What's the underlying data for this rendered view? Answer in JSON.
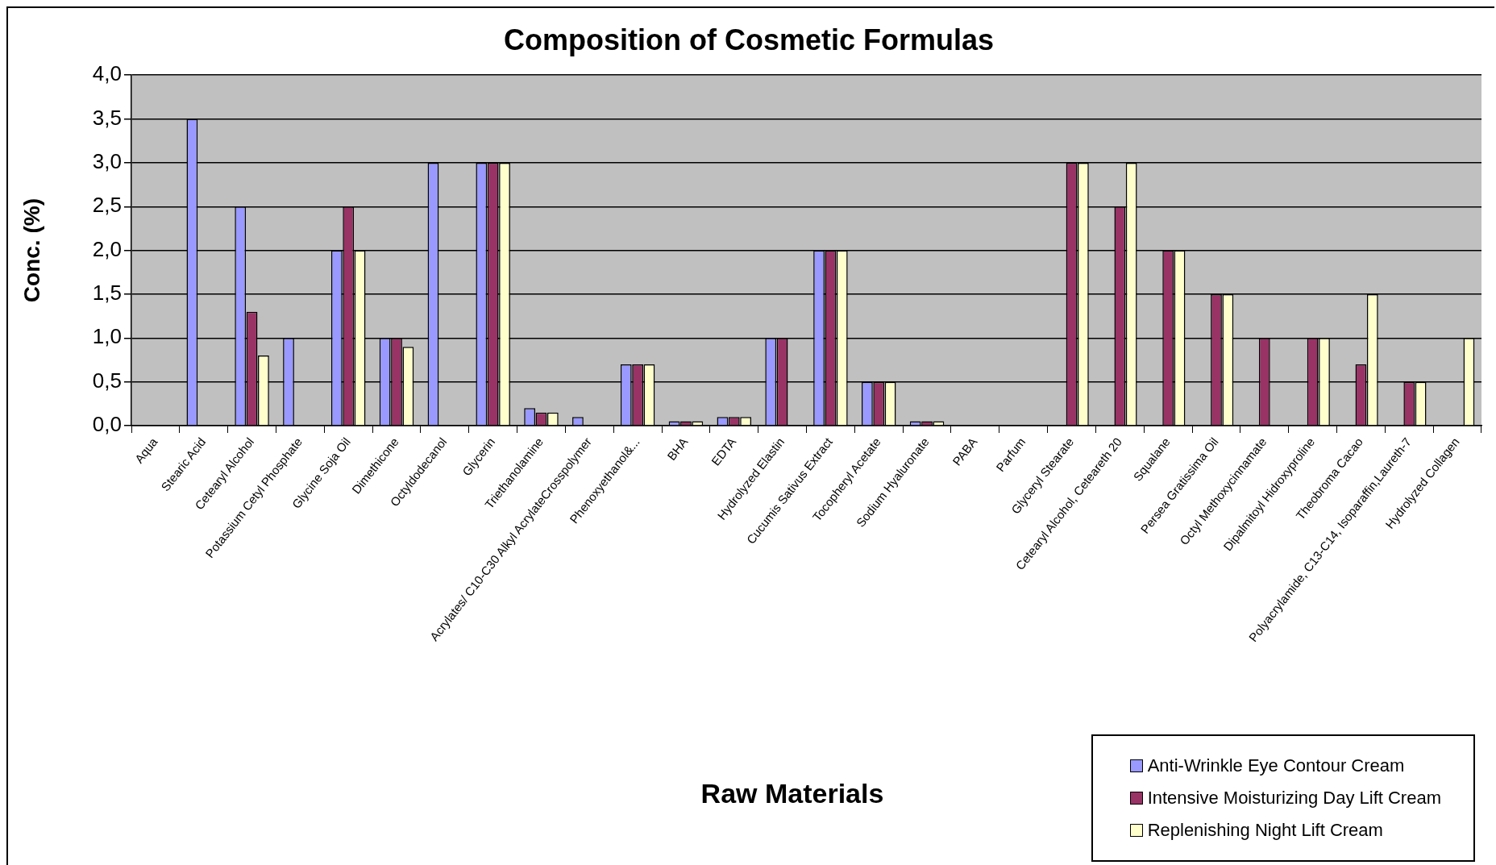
{
  "chart_data": {
    "type": "bar",
    "title": "Composition of Cosmetic Formulas",
    "xlabel": "Raw Materials",
    "ylabel": "Conc. (%)",
    "categories": [
      "Aqua",
      "Stearic Acid",
      "Cetearyl Alcohol",
      "Potassium Cetyl Phosphate",
      "Glycine Soja Oil",
      "Dimethicone",
      "Octyldodecanol",
      "Glycerin",
      "Triethanolamine",
      "Acrylates/ C10-C30 Alkyl AcrylateCrosspolymer",
      "Phenoxyethanol&...",
      "BHA",
      "EDTA",
      "Hydrolyzed Elastin",
      "Cucumis Sativus Extract",
      "Tocopheryl Acetate",
      "Sodium Hyaluronate",
      "PABA",
      "Parfum",
      "Glyceryl Stearate",
      "Cetearyl Alcohol, Ceteareth 20",
      "Squalane",
      "Persea Gratissima Oil",
      "Octyl Methoxycinnamate",
      "Dipalmitoyl Hidroxyproline",
      "Theobroma Cacao",
      "Polyacrylamide, C13-C14, Isoparaffin,Laureth-7",
      "Hydrolyzed Collagen"
    ],
    "series": [
      {
        "name": "Anti-Wrinkle Eye Contour Cream",
        "color": "#9999ff",
        "values": [
          null,
          3.5,
          2.5,
          1.0,
          2.0,
          1.0,
          3.0,
          3.0,
          0.2,
          0.1,
          0.7,
          0.05,
          0.1,
          1.0,
          2.0,
          0.5,
          0.05,
          null,
          null,
          null,
          null,
          null,
          null,
          null,
          null,
          null,
          null,
          null
        ]
      },
      {
        "name": "Intensive Moisturizing Day Lift Cream",
        "color": "#993366",
        "values": [
          null,
          null,
          1.3,
          null,
          2.5,
          1.0,
          null,
          3.0,
          0.15,
          null,
          0.7,
          0.05,
          0.1,
          1.0,
          2.0,
          0.5,
          0.05,
          null,
          null,
          3.0,
          2.5,
          2.0,
          1.5,
          1.0,
          1.0,
          0.7,
          0.5,
          null
        ]
      },
      {
        "name": "Replenishing Night Lift Cream",
        "color": "#ffffcc",
        "values": [
          null,
          null,
          0.8,
          null,
          2.0,
          0.9,
          null,
          3.0,
          0.15,
          null,
          0.7,
          0.05,
          0.1,
          null,
          2.0,
          0.5,
          0.05,
          null,
          null,
          3.0,
          3.0,
          2.0,
          1.5,
          null,
          1.0,
          1.5,
          0.5,
          1.0
        ]
      }
    ],
    "ylim": [
      0,
      4
    ],
    "yticks": [
      {
        "value": 0,
        "label": "0,0"
      },
      {
        "value": 0.5,
        "label": "0,5"
      },
      {
        "value": 1,
        "label": "1,0"
      },
      {
        "value": 1.5,
        "label": "1,5"
      },
      {
        "value": 2,
        "label": "2,0"
      },
      {
        "value": 2.5,
        "label": "2,5"
      },
      {
        "value": 3,
        "label": "3,0"
      },
      {
        "value": 3.5,
        "label": "3,5"
      },
      {
        "value": 4,
        "label": "4,0"
      }
    ],
    "grid": "y",
    "legend": "bottom right"
  }
}
